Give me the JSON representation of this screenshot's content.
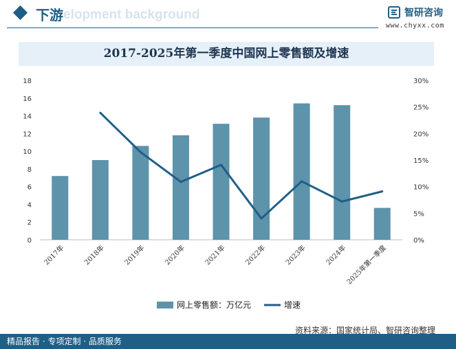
{
  "header": {
    "section_title": "下游",
    "ghost_text": "elopment background",
    "brand_name": "智研咨询",
    "brand_url": "www.chyxx.com",
    "logo_icon": "chyxx-logo-icon"
  },
  "chart_data": {
    "type": "bar+line",
    "title": "2017-2025年第一季度中国网上零售额及增速",
    "categories": [
      "2017年",
      "2018年",
      "2019年",
      "2020年",
      "2021年",
      "2022年",
      "2023年",
      "2024年",
      "2025年第一季度"
    ],
    "series": [
      {
        "name": "网上零售额：万亿元",
        "type": "bar",
        "axis": "left",
        "color": "#5d93ab",
        "values": [
          7.2,
          9.0,
          10.6,
          11.8,
          13.1,
          13.8,
          15.4,
          15.2,
          3.6
        ]
      },
      {
        "name": "增速",
        "type": "line",
        "axis": "right",
        "color": "#1f5f86",
        "values": [
          null,
          23.9,
          16.5,
          10.9,
          14.1,
          4.0,
          11.0,
          7.2,
          9.1
        ]
      }
    ],
    "y_left": {
      "ticks": [
        "0",
        "2",
        "4",
        "6",
        "8",
        "10",
        "12",
        "14",
        "16",
        "18"
      ],
      "range": [
        0,
        18
      ]
    },
    "y_right": {
      "ticks": [
        "0%",
        "5%",
        "10%",
        "15%",
        "20%",
        "25%",
        "30%"
      ],
      "range": [
        0,
        30
      ]
    },
    "legend_position": "bottom-center"
  },
  "source": "资料来源：国家统计局、智研咨询整理",
  "footer": "精品报告 · 专项定制 · 品质服务"
}
